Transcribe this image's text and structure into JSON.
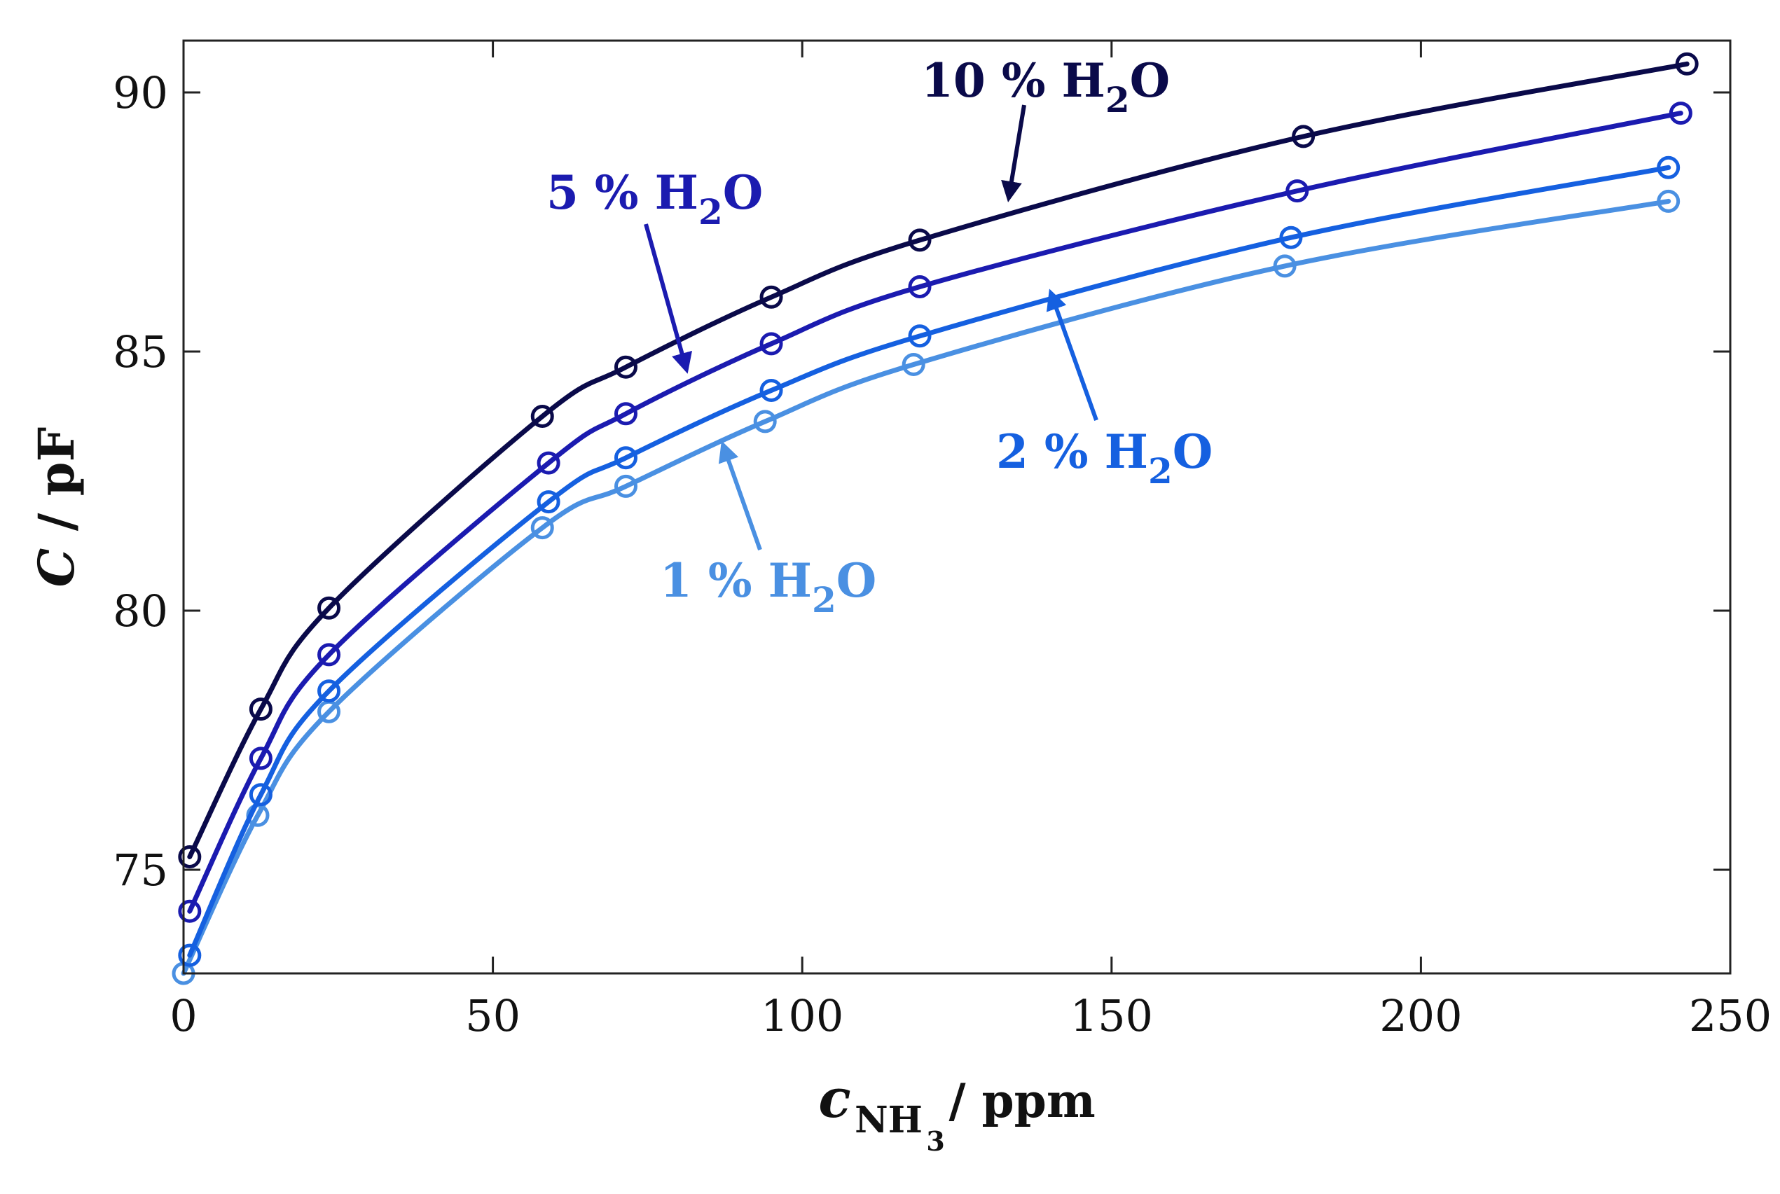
{
  "chart_data": {
    "type": "line",
    "title": "",
    "xlabel": {
      "main": "c",
      "sub": "NH",
      "subsub": "3",
      "unit": " / ppm"
    },
    "ylabel": {
      "main": "C",
      "unit": " / pF"
    },
    "xlim": [
      0,
      250
    ],
    "ylim": [
      73,
      91
    ],
    "xticks": [
      "0",
      "50",
      "100",
      "150",
      "200",
      "250"
    ],
    "yticks": [
      "75",
      "80",
      "85",
      "90"
    ],
    "grid": false,
    "markers": "open-circle",
    "series": [
      {
        "name": "10 % H2O",
        "label": {
          "pre": "10 % H",
          "sub": "2",
          "post": "O"
        },
        "color": "#0a0a4a",
        "x": [
          1,
          12.5,
          23.5,
          58,
          71.5,
          95,
          119,
          181,
          243
        ],
        "y": [
          75.25,
          78.1,
          80.05,
          83.75,
          84.7,
          86.05,
          87.15,
          89.15,
          90.55
        ]
      },
      {
        "name": "5 % H2O",
        "label": {
          "pre": "5 % H",
          "sub": "2",
          "post": "O"
        },
        "color": "#1b1bb0",
        "x": [
          1,
          12.5,
          23.5,
          59,
          71.5,
          95,
          119,
          180,
          242
        ],
        "y": [
          74.2,
          77.15,
          79.15,
          82.85,
          83.8,
          85.15,
          86.25,
          88.1,
          89.6
        ]
      },
      {
        "name": "2 % H2O",
        "label": {
          "pre": "2 % H",
          "sub": "2",
          "post": "O"
        },
        "color": "#1560e0",
        "x": [
          1,
          12.5,
          23.5,
          59,
          71.5,
          95,
          119,
          179,
          240
        ],
        "y": [
          73.35,
          76.45,
          78.45,
          82.1,
          82.95,
          84.25,
          85.3,
          87.2,
          88.55
        ]
      },
      {
        "name": "1 % H2O",
        "label": {
          "pre": "1 % H",
          "sub": "2",
          "post": "O"
        },
        "color": "#4a90e2",
        "x": [
          0,
          12,
          23.5,
          58,
          71.5,
          94,
          118,
          178,
          240
        ],
        "y": [
          73.0,
          76.05,
          78.05,
          81.6,
          82.4,
          83.65,
          84.75,
          86.65,
          87.9
        ]
      }
    ]
  }
}
